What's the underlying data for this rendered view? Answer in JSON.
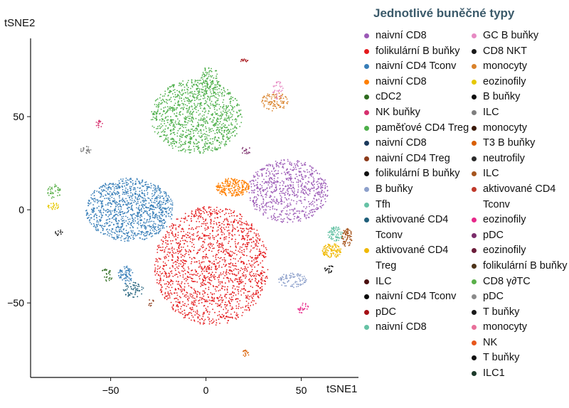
{
  "chart_data": {
    "type": "scatter",
    "title": "",
    "xlabel": "tSNE1",
    "ylabel": "tSNE2",
    "xlim": [
      -92,
      80
    ],
    "ylim": [
      -90,
      92
    ],
    "xticks": [
      -50,
      0,
      50
    ],
    "yticks": [
      -50,
      0,
      50
    ],
    "xtick_labels": [
      "−50",
      "0",
      "50"
    ],
    "ytick_labels": [
      "−50",
      "0",
      "50"
    ],
    "grid": false,
    "legend": {
      "title": "Jednotlivé buněčné typy",
      "position": "right",
      "entries": [
        {
          "label": "naivní CD8",
          "color": "#9b59b6"
        },
        {
          "label": "folikulární B buňky",
          "color": "#e41a1c"
        },
        {
          "label": "naivní CD4 Tconv",
          "color": "#377eb8"
        },
        {
          "label": "naivní CD8",
          "color": "#ff7f00"
        },
        {
          "label": "cDC2",
          "color": "#2e6b1f"
        },
        {
          "label": "NK buňky",
          "color": "#d6306e"
        },
        {
          "label": "paměťové CD4 Treg",
          "color": "#4daf4a"
        },
        {
          "label": "naivní CD8",
          "color": "#1b3a5c"
        },
        {
          "label": "naivní CD4 Treg",
          "color": "#8c3a1a"
        },
        {
          "label": "folikulární B buňky",
          "color": "#111111"
        },
        {
          "label": "B buňky",
          "color": "#8da0cb"
        },
        {
          "label": "Tfh",
          "color": "#66c2a5"
        },
        {
          "label": "aktivované CD4 Tconv",
          "color": "#1f5f7a"
        },
        {
          "label": "aktivované CD4 Treg",
          "color": "#f0b800"
        },
        {
          "label": "ILC",
          "color": "#4a0f0f"
        },
        {
          "label": "naivní CD4 Tconv",
          "color": "#0a0a0a"
        },
        {
          "label": "pDC",
          "color": "#a50f15"
        },
        {
          "label": "naivní CD8",
          "color": "#66c2a5"
        },
        {
          "label": "GC B buňky",
          "color": "#e78ac3"
        },
        {
          "label": "CD8 NKT",
          "color": "#1a1a1a"
        },
        {
          "label": "monocyty",
          "color": "#d9822b"
        },
        {
          "label": "eozinofily",
          "color": "#e6c800"
        },
        {
          "label": "B buňky",
          "color": "#0d0d0d"
        },
        {
          "label": "ILC",
          "color": "#7f7f7f"
        },
        {
          "label": "monocyty",
          "color": "#3a1a0a"
        },
        {
          "label": "T3 B buňky",
          "color": "#d95f02"
        },
        {
          "label": "neutrofily",
          "color": "#2b2b2b"
        },
        {
          "label": "ILC",
          "color": "#a6551e"
        },
        {
          "label": "aktivované CD4 Tconv",
          "color": "#c0392b"
        },
        {
          "label": "eozinofily",
          "color": "#e7298a"
        },
        {
          "label": "pDC",
          "color": "#7b2d6b"
        },
        {
          "label": "eozinofily",
          "color": "#6b1d3a"
        },
        {
          "label": "folikulární B buňky",
          "color": "#4d3319"
        },
        {
          "label": "CD8 γ∂TC",
          "color": "#5ab04a"
        },
        {
          "label": "pDC",
          "color": "#8a8a8a"
        },
        {
          "label": "T buňky",
          "color": "#1a1a1a"
        },
        {
          "label": "monocyty",
          "color": "#e8709a"
        },
        {
          "label": "NK",
          "color": "#e8571c"
        },
        {
          "label": "T buňky",
          "color": "#111111"
        },
        {
          "label": "ILC1",
          "color": "#1c3a2a"
        }
      ]
    },
    "clusters": [
      {
        "series": 1,
        "cx": 3,
        "cy": -30,
        "rx": 30,
        "ry": 32,
        "n": 1700
      },
      {
        "series": 2,
        "cx": -40,
        "cy": 0,
        "rx": 23,
        "ry": 17,
        "n": 1100
      },
      {
        "series": 6,
        "cx": -5,
        "cy": 50,
        "rx": 24,
        "ry": 20,
        "n": 1100
      },
      {
        "series": 0,
        "cx": 43,
        "cy": 10,
        "rx": 21,
        "ry": 17,
        "n": 750
      },
      {
        "series": 3,
        "cx": 14,
        "cy": 12,
        "rx": 9,
        "ry": 5,
        "n": 230
      },
      {
        "series": 10,
        "cx": 45,
        "cy": -38,
        "rx": 8,
        "ry": 4,
        "n": 90
      },
      {
        "series": 2,
        "cx": -42,
        "cy": -35,
        "rx": 4,
        "ry": 5,
        "n": 70
      },
      {
        "series": 12,
        "cx": -38,
        "cy": -43,
        "rx": 6,
        "ry": 4,
        "n": 60
      },
      {
        "series": 13,
        "cx": 66,
        "cy": -22,
        "rx": 5,
        "ry": 4,
        "n": 110
      },
      {
        "series": 17,
        "cx": 68,
        "cy": -13,
        "rx": 4,
        "ry": 4,
        "n": 80
      },
      {
        "series": 27,
        "cx": 74,
        "cy": -15,
        "rx": 3,
        "ry": 5,
        "n": 70
      },
      {
        "series": 20,
        "cx": 36,
        "cy": 58,
        "rx": 7,
        "ry": 5,
        "n": 100
      },
      {
        "series": 18,
        "cx": 38,
        "cy": 64,
        "rx": 3,
        "ry": 5,
        "n": 35
      },
      {
        "series": 6,
        "cx": 2,
        "cy": 70,
        "rx": 5,
        "ry": 7,
        "n": 80
      },
      {
        "series": 33,
        "cx": -80,
        "cy": 10,
        "rx": 4,
        "ry": 4,
        "n": 40
      },
      {
        "series": 21,
        "cx": -80,
        "cy": 2,
        "rx": 3,
        "ry": 2,
        "n": 25
      },
      {
        "series": 23,
        "cx": -63,
        "cy": 32,
        "rx": 3,
        "ry": 2,
        "n": 25
      },
      {
        "series": 5,
        "cx": -56,
        "cy": 46,
        "rx": 2,
        "ry": 2,
        "n": 15
      },
      {
        "series": 4,
        "cx": -52,
        "cy": -35,
        "rx": 3,
        "ry": 4,
        "n": 25
      },
      {
        "series": 15,
        "cx": 65,
        "cy": -32,
        "rx": 3,
        "ry": 2,
        "n": 20
      },
      {
        "series": 29,
        "cx": 51,
        "cy": -53,
        "rx": 3,
        "ry": 3,
        "n": 25
      },
      {
        "series": 25,
        "cx": 21,
        "cy": -77,
        "rx": 2,
        "ry": 2,
        "n": 15
      },
      {
        "series": 16,
        "cx": 20,
        "cy": 80,
        "rx": 2,
        "ry": 1,
        "n": 12
      },
      {
        "series": 30,
        "cx": 21,
        "cy": 32,
        "rx": 3,
        "ry": 2,
        "n": 15
      },
      {
        "series": 9,
        "cx": -77,
        "cy": -12,
        "rx": 2,
        "ry": 2,
        "n": 12
      },
      {
        "series": 8,
        "cx": -29,
        "cy": -50,
        "rx": 2,
        "ry": 2,
        "n": 10
      }
    ]
  }
}
